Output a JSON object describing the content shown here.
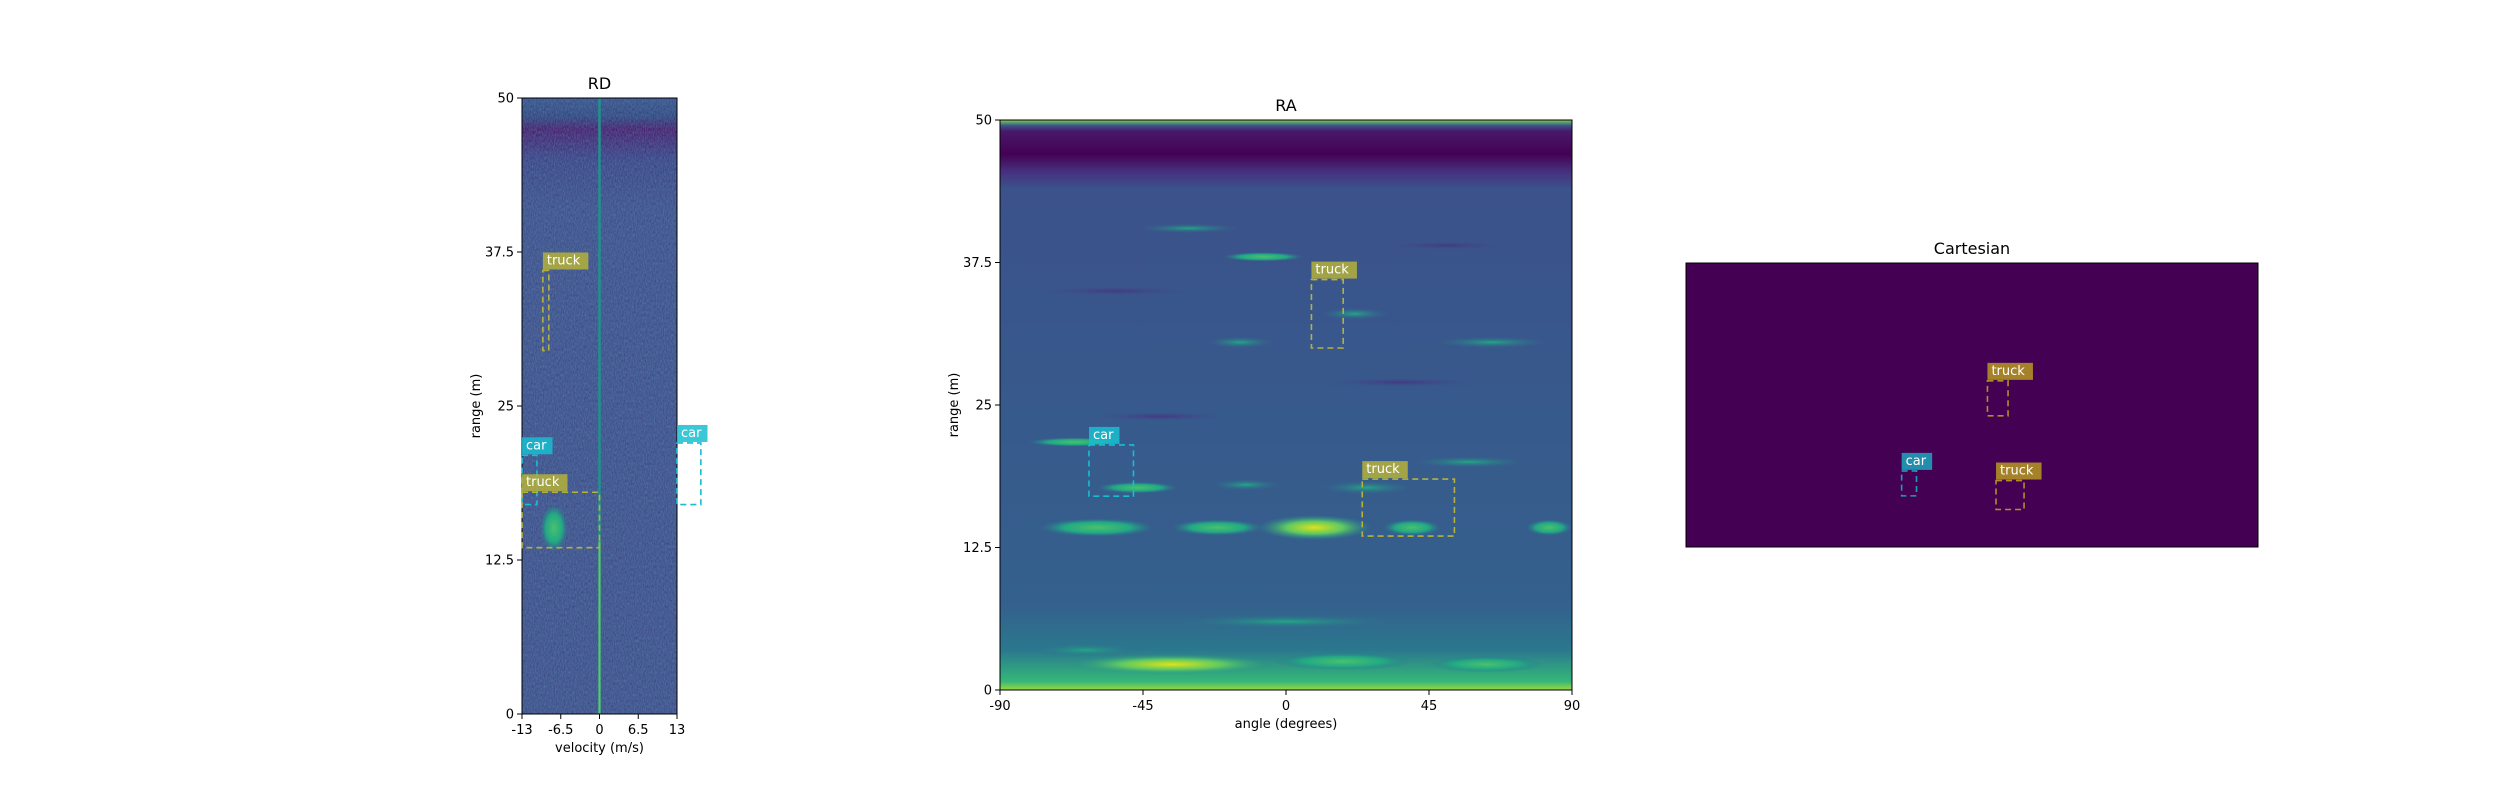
{
  "colors": {
    "viridis_dark": "#440154",
    "viridis_blue": "#3b528b",
    "viridis_teal": "#21918c",
    "viridis_green": "#5ec962",
    "viridis_yellow": "#fde725",
    "truck_box": "#b5b239",
    "car_box": "#17becf"
  },
  "chart_data": [
    {
      "type": "heatmap",
      "title": "RD",
      "xlabel": "velocity (m/s)",
      "ylabel": "range (m)",
      "xlim": [
        -13,
        13
      ],
      "ylim": [
        0,
        50
      ],
      "xticks": [
        "-13",
        "-6.5",
        "0",
        "6.5",
        "13"
      ],
      "yticks": [
        "0",
        "12.5",
        "25",
        "37.5",
        "50"
      ],
      "colormap": "viridis",
      "annotations": [
        {
          "label": "truck",
          "box": {
            "x": [
              -9.5,
              -8.5
            ],
            "y": [
              29.5,
              36
            ]
          }
        },
        {
          "label": "car",
          "box": {
            "x": [
              -13,
              -10.5
            ],
            "y": [
              17,
              21
            ]
          }
        },
        {
          "label": "truck",
          "box": {
            "x": [
              -13,
              0
            ],
            "y": [
              13.5,
              18
            ]
          }
        },
        {
          "label": "car",
          "box": {
            "x": [
              13,
              17
            ],
            "y": [
              17,
              22
            ]
          }
        }
      ]
    },
    {
      "type": "heatmap",
      "title": "RA",
      "xlabel": "angle (degrees)",
      "ylabel": "range (m)",
      "xlim": [
        -90,
        90
      ],
      "ylim": [
        0,
        50
      ],
      "xticks": [
        "-90",
        "-45",
        "0",
        "45",
        "90"
      ],
      "yticks": [
        "0",
        "12.5",
        "25",
        "37.5",
        "50"
      ],
      "colormap": "viridis",
      "annotations": [
        {
          "label": "truck",
          "box": {
            "x": [
              8,
              18
            ],
            "y": [
              30,
              36
            ]
          }
        },
        {
          "label": "car",
          "box": {
            "x": [
              -62,
              -48
            ],
            "y": [
              17,
              21.5
            ]
          }
        },
        {
          "label": "truck",
          "box": {
            "x": [
              24,
              53
            ],
            "y": [
              13.5,
              18.5
            ]
          }
        }
      ]
    },
    {
      "type": "heatmap",
      "title": "Cartesian",
      "colormap": "viridis",
      "annotations": [
        {
          "label": "truck",
          "box": {
            "x": [
              0.527,
              0.563
            ],
            "y": [
              0.415,
              0.538
            ]
          }
        },
        {
          "label": "car",
          "box": {
            "x": [
              0.377,
              0.403
            ],
            "y": [
              0.732,
              0.82
            ]
          }
        },
        {
          "label": "truck",
          "box": {
            "x": [
              0.542,
              0.591
            ],
            "y": [
              0.766,
              0.868
            ]
          }
        }
      ]
    }
  ]
}
